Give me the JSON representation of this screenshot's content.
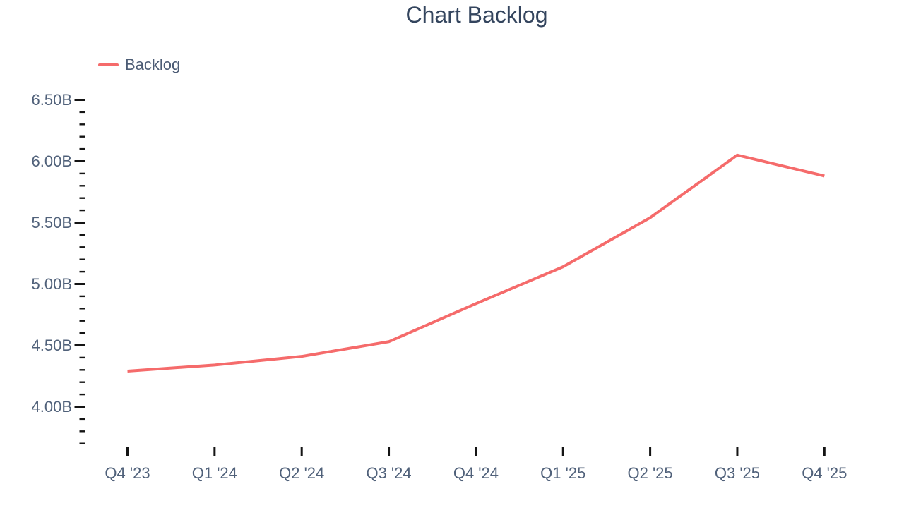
{
  "chart_data": {
    "type": "line",
    "title": "Chart Backlog",
    "categories": [
      "Q4 '23",
      "Q1 '24",
      "Q2 '24",
      "Q3 '24",
      "Q4 '24",
      "Q1 '25",
      "Q2 '25",
      "Q3 '25",
      "Q4 '25"
    ],
    "series": [
      {
        "name": "Backlog",
        "color": "#f56b6b",
        "values": [
          4.29,
          4.34,
          4.41,
          4.53,
          4.84,
          5.14,
          5.54,
          6.05,
          5.88
        ]
      }
    ],
    "xlabel": "",
    "ylabel": "",
    "yaxis": {
      "tick_labels": [
        "6.50B",
        "6.00B",
        "5.50B",
        "5.00B",
        "4.50B",
        "4.00B"
      ],
      "tick_values": [
        6.5,
        6.0,
        5.5,
        5.0,
        4.5,
        4.0
      ],
      "minor_tick_step": 0.1,
      "minor_tick_min": 3.7,
      "minor_tick_max": 6.5,
      "range": [
        3.67,
        6.53
      ],
      "unit": "B"
    },
    "legend": {
      "position": "top-left",
      "entries": [
        {
          "label": "Backlog",
          "color": "#f56b6b"
        }
      ]
    },
    "grid": false
  },
  "colors": {
    "background": "#ffffff",
    "line": "#f56b6b",
    "title_text": "#34455e",
    "axis_text": "#50617a",
    "tick_mark": "#141414"
  }
}
